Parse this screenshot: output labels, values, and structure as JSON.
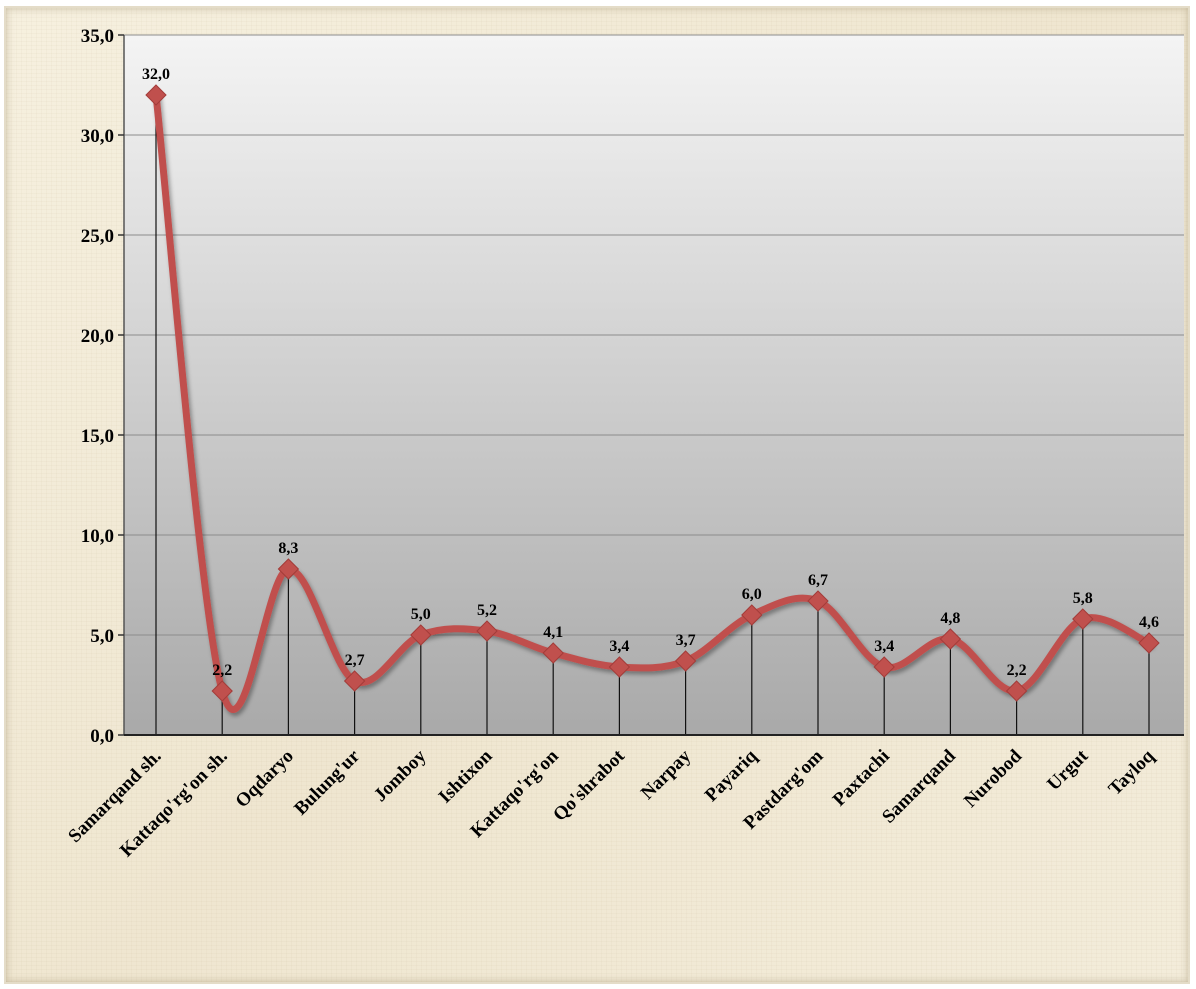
{
  "chart_data": {
    "type": "line",
    "title": "",
    "xlabel": "",
    "ylabel": "",
    "categories": [
      "Samarqand sh.",
      "Kattaqo'rg'on sh.",
      "Oqdaryo",
      "Bulung'ur",
      "Jomboy",
      "Ishtixon",
      "Kattaqo'rg'on",
      "Qo'shrabot",
      "Narpay",
      "Payariq",
      "Pastdarg'om",
      "Paxtachi",
      "Samarqand",
      "Nurobod",
      "Urgut",
      "Tayloq"
    ],
    "values": [
      32.0,
      2.2,
      8.3,
      2.7,
      5.0,
      5.2,
      4.1,
      3.4,
      3.7,
      6.0,
      6.7,
      3.4,
      4.8,
      2.2,
      5.8,
      4.6
    ],
    "data_labels": [
      "32,0",
      "2,2",
      "8,3",
      "2,7",
      "5,0",
      "5,2",
      "4,1",
      "3,4",
      "3,7",
      "6,0",
      "6,7",
      "3,4",
      "4,8",
      "2,2",
      "5,8",
      "4,6"
    ],
    "yticks": [
      0,
      5,
      10,
      15,
      20,
      25,
      30,
      35
    ],
    "ytick_labels": [
      "0,0",
      "5,0",
      "10,0",
      "15,0",
      "20,0",
      "25,0",
      "30,0",
      "35,0"
    ],
    "ylim": [
      0,
      35
    ],
    "grid": true,
    "smooth": true,
    "drop_lines": true,
    "legend": "none",
    "colors": {
      "line": "#c0504d",
      "marker": "#c0504d",
      "plot_bg_top": "#f4f4f4",
      "plot_bg_bottom": "#a9a9a9",
      "gridline": "#8c8c8c"
    }
  }
}
